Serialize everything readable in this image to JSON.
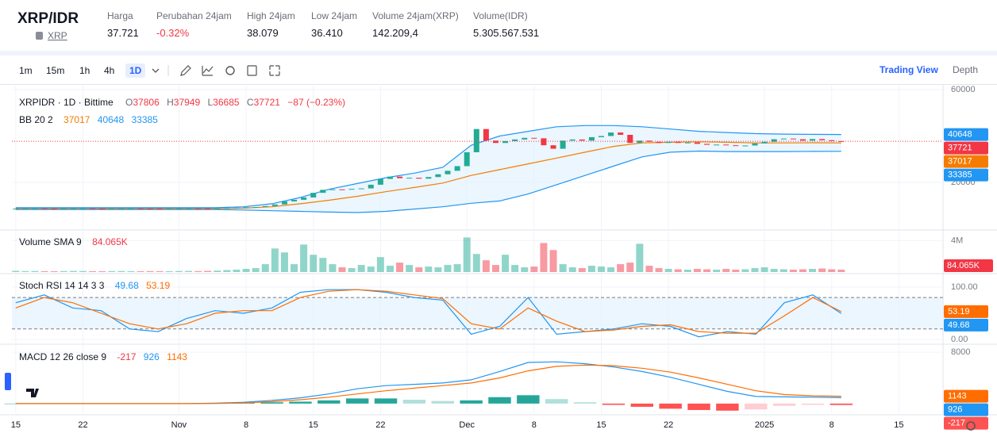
{
  "header": {
    "symbol": "XRP/IDR",
    "asset": "XRP",
    "stats": [
      {
        "label": "Harga",
        "value": "37.721"
      },
      {
        "label": "Perubahan 24jam",
        "value": "-0.32%"
      },
      {
        "label": "High 24jam",
        "value": "38.079"
      },
      {
        "label": "Low 24jam",
        "value": "36.410"
      },
      {
        "label": "Volume 24jam(XRP)",
        "value": "142.209,4"
      },
      {
        "label": "Volume(IDR)",
        "value": "5.305.567.531"
      }
    ]
  },
  "toolbar": {
    "intervals": [
      "1m",
      "15m",
      "1h",
      "4h",
      "1D"
    ],
    "tabs": [
      "Trading View",
      "Depth"
    ]
  },
  "chart_data": [
    {
      "type": "candlestick",
      "title": "XRPIDR · 1D · Bittime",
      "legend_keys": [
        "O",
        "H",
        "L",
        "C"
      ],
      "high": 37949,
      "low": 36685,
      "change": "−87 (−0.23%)",
      "up_color": "#22ab94",
      "down_color": "#f23645",
      "open": [
        8650,
        8700,
        8750,
        8800,
        8700,
        8650,
        8700,
        8750,
        8800,
        8700,
        8600,
        8650,
        8700,
        8750,
        8700,
        8650,
        8600,
        8650,
        8700,
        8750,
        8700,
        8650,
        8700,
        8900,
        9100,
        9300,
        9400,
        9800,
        10500,
        11800,
        12500,
        13500,
        15500,
        16800,
        17000,
        16900,
        17200,
        17400,
        19000,
        21500,
        22500,
        21800,
        22000,
        21600,
        22300,
        23500,
        25000,
        27000,
        33000,
        43000,
        38000,
        37000,
        37800,
        38500,
        39200,
        39000,
        36000,
        34500,
        38000,
        38500,
        38000,
        39500,
        40000,
        41500,
        40500,
        37000,
        38000,
        37500,
        37000,
        37500,
        37000,
        37200,
        36600,
        36200,
        36300,
        36000,
        35700,
        35900,
        36800,
        37500,
        38600,
        38900,
        38600,
        38000,
        38700,
        38200,
        37806
      ],
      "close": [
        8700,
        8750,
        8800,
        8700,
        8650,
        8700,
        8750,
        8800,
        8700,
        8600,
        8650,
        8700,
        8750,
        8700,
        8650,
        8600,
        8650,
        8700,
        8750,
        8700,
        8650,
        8700,
        8900,
        9100,
        9300,
        9400,
        9800,
        10500,
        11800,
        12500,
        13500,
        15500,
        16800,
        17000,
        16900,
        17200,
        17400,
        19000,
        21500,
        22500,
        21800,
        22000,
        21600,
        22300,
        23500,
        25000,
        27000,
        33000,
        43000,
        38000,
        37000,
        37800,
        38500,
        39200,
        39000,
        36000,
        34500,
        38000,
        38500,
        38000,
        39500,
        40000,
        41500,
        40500,
        37000,
        38000,
        37500,
        37000,
        37500,
        37000,
        37200,
        36600,
        36200,
        36300,
        36000,
        35700,
        35900,
        36800,
        37500,
        38600,
        38900,
        38600,
        38000,
        38700,
        38200,
        37800,
        37721
      ],
      "ylim": [
        160,
        61700
      ],
      "yticks": [
        20000,
        60000
      ],
      "overlays": {
        "name": "BB 20 2",
        "fill": "#e3f2fd",
        "series": [
          {
            "color": "#f57c00",
            "values": [
              8700,
              8700,
              8700,
              8700,
              8700,
              8700,
              8700,
              8700,
              8900,
              9500,
              10800,
              12300,
              14000,
              16000,
              17800,
              19700,
              23000,
              25500,
              28000,
              30500,
              33000,
              35500,
              37000,
              37300,
              37500,
              37300,
              37000,
              37000,
              37100,
              37017
            ]
          },
          {
            "color": "#2196f3",
            "values": [
              9100,
              9100,
              9100,
              9100,
              9100,
              9100,
              9100,
              9100,
              9500,
              10800,
              13500,
              17000,
              19500,
              22000,
              24000,
              26500,
              36000,
              40000,
              42000,
              44000,
              44500,
              44500,
              44000,
              43000,
              42000,
              41500,
              41000,
              40800,
              40700,
              40648
            ]
          },
          {
            "color": "#2196f3",
            "values": [
              8300,
              8300,
              8300,
              8300,
              8300,
              8300,
              8300,
              8300,
              8100,
              7800,
              7500,
              7200,
              7000,
              7500,
              8500,
              9500,
              11000,
              12000,
              15000,
              19000,
              23000,
              27000,
              31000,
              33000,
              33500,
              33300,
              33300,
              33300,
              33350,
              33385
            ]
          }
        ]
      }
    },
    {
      "type": "bar",
      "title": "Volume SMA 9",
      "sma": {
        "value": 84065,
        "label": "84.065K"
      },
      "sma_color": "#f23645",
      "values": [
        150000,
        120000,
        130000,
        110000,
        100000,
        120000,
        140000,
        130000,
        110000,
        100000,
        120000,
        130000,
        110000,
        100000,
        120000,
        110000,
        100000,
        130000,
        140000,
        120000,
        150000,
        180000,
        250000,
        300000,
        400000,
        500000,
        1000000,
        3000000,
        2500000,
        1000000,
        3500000,
        2200000,
        1800000,
        1000000,
        600000,
        500000,
        900000,
        700000,
        1900000,
        800000,
        1200000,
        900000,
        600000,
        700000,
        600000,
        900000,
        1000000,
        4400000,
        2300000,
        1500000,
        900000,
        2200000,
        900000,
        600000,
        700000,
        3700000,
        2800000,
        1000000,
        600000,
        500000,
        800000,
        700000,
        600000,
        1000000,
        1200000,
        3600000,
        800000,
        500000,
        400000,
        350000,
        300000,
        400000,
        350000,
        300000,
        400000,
        300000,
        350000,
        500000,
        600000,
        400000,
        350000,
        300000,
        350000,
        400000,
        450000,
        350000,
        300000
      ],
      "ylim": [
        0,
        5050000
      ],
      "yticks": [
        {
          "value": 4000000,
          "label": "4M"
        }
      ]
    },
    {
      "type": "line",
      "title": "Stoch RSI 14 14 3 3",
      "bands": [
        20,
        80
      ],
      "band_fill": "#e3f2fd",
      "series": [
        {
          "color": "#2196f3",
          "values": [
            70,
            85,
            60,
            55,
            20,
            15,
            40,
            55,
            50,
            60,
            90,
            95,
            95,
            90,
            80,
            75,
            10,
            25,
            80,
            10,
            15,
            20,
            30,
            25,
            5,
            15,
            10,
            70,
            85,
            49.68
          ]
        },
        {
          "color": "#ff6d00",
          "values": [
            60,
            80,
            70,
            50,
            30,
            20,
            30,
            50,
            55,
            55,
            80,
            92,
            95,
            92,
            85,
            78,
            30,
            20,
            60,
            35,
            15,
            18,
            25,
            28,
            15,
            12,
            12,
            45,
            80,
            53.19
          ]
        }
      ],
      "ylim": [
        -6,
        121
      ],
      "yticks": [
        {
          "value": 0,
          "label": "0.00"
        },
        {
          "value": 100,
          "label": "100.00"
        }
      ]
    },
    {
      "type": "macd",
      "title": "MACD 12 26 close 9",
      "histogram": {
        "colors": [
          "#26a69a",
          "#b2dfdb",
          "#ffcdd2",
          "#ff5252"
        ],
        "values": [
          0,
          0,
          0,
          0,
          0,
          0,
          0,
          30,
          100,
          200,
          300,
          500,
          800,
          800,
          600,
          400,
          500,
          1000,
          1300,
          700,
          200,
          -200,
          -500,
          -800,
          -1000,
          -1100,
          -900,
          -350,
          -200,
          -217
        ]
      },
      "series": [
        {
          "color": "#2196f3",
          "values": [
            0,
            0,
            0,
            0,
            0,
            0,
            0,
            50,
            200,
            500,
            900,
            1500,
            2300,
            2800,
            3000,
            3200,
            3700,
            5000,
            6400,
            6500,
            6200,
            5700,
            5000,
            4100,
            3000,
            1900,
            1100,
            1050,
            1000,
            926
          ]
        },
        {
          "color": "#ff6d00",
          "values": [
            0,
            0,
            0,
            0,
            0,
            0,
            0,
            20,
            100,
            300,
            600,
            1000,
            1500,
            2000,
            2400,
            2800,
            3200,
            4000,
            5100,
            5800,
            6000,
            5900,
            5500,
            4900,
            4000,
            3000,
            2000,
            1400,
            1200,
            1143
          ]
        }
      ],
      "ylim": [
        -1500,
        8750
      ],
      "yticks": [
        8000
      ],
      "xlim": [
        -0.4,
        96.6
      ],
      "xticks": [
        {
          "value": 0,
          "label": "15"
        },
        {
          "value": 7,
          "label": "22"
        },
        {
          "value": 17,
          "label": "Nov"
        },
        {
          "value": 24,
          "label": "8"
        },
        {
          "value": 31,
          "label": "15"
        },
        {
          "value": 38,
          "label": "22"
        },
        {
          "value": 47,
          "label": "Dec"
        },
        {
          "value": 54,
          "label": "8"
        },
        {
          "value": 61,
          "label": "15"
        },
        {
          "value": 68,
          "label": "22"
        },
        {
          "value": 78,
          "label": "2025"
        },
        {
          "value": 85,
          "label": "8"
        },
        {
          "value": 92,
          "label": "15"
        }
      ]
    }
  ]
}
